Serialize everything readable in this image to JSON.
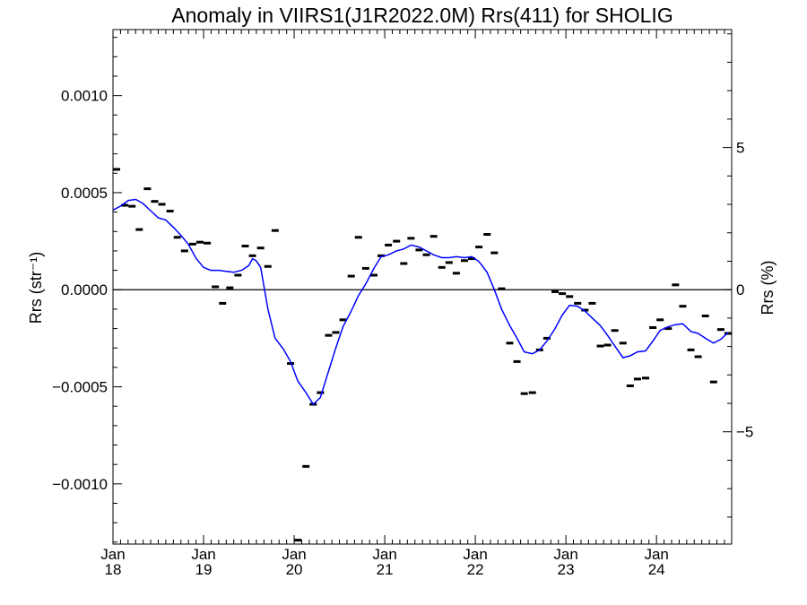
{
  "chart_data": {
    "type": "line",
    "title": "Anomaly in VIIRS1(J1R2022.0M) Rrs(411) for SHOLIG",
    "ylabel_left": "Rrs (str⁻¹)",
    "ylabel_right": "Rrs (%)",
    "xlabel": "",
    "x_ticks": [
      {
        "month": "Jan",
        "year": "18"
      },
      {
        "month": "Jan",
        "year": "19"
      },
      {
        "month": "Jan",
        "year": "20"
      },
      {
        "month": "Jan",
        "year": "21"
      },
      {
        "month": "Jan",
        "year": "22"
      },
      {
        "month": "Jan",
        "year": "23"
      },
      {
        "month": "Jan",
        "year": "24"
      }
    ],
    "xlim": [
      2018.0,
      2024.83
    ],
    "ylim_left": [
      -0.00131,
      0.00134
    ],
    "ylim_right": [
      -8.95,
      9.15
    ],
    "y_ticks_left": [
      {
        "value": 0.001,
        "label": "0.0010"
      },
      {
        "value": 0.0005,
        "label": "0.0005"
      },
      {
        "value": 0.0,
        "label": "0.0000"
      },
      {
        "value": -0.0005,
        "label": "−0.0005"
      },
      {
        "value": -0.001,
        "label": "−0.0010"
      }
    ],
    "y_ticks_right": [
      {
        "value": 5,
        "label": "5"
      },
      {
        "value": 0,
        "label": "0"
      },
      {
        "value": -5,
        "label": "−5"
      }
    ],
    "zero_line": true,
    "grid": false,
    "series": [
      {
        "style": "markers",
        "color": "#000000",
        "points": [
          [
            2018.04,
            0.00062
          ],
          [
            2018.13,
            0.000435
          ],
          [
            2018.21,
            0.00043
          ],
          [
            2018.29,
            0.00031
          ],
          [
            2018.38,
            0.00052
          ],
          [
            2018.46,
            0.000455
          ],
          [
            2018.54,
            0.00044
          ],
          [
            2018.63,
            0.000405
          ],
          [
            2018.71,
            0.00027
          ],
          [
            2018.79,
            0.0002
          ],
          [
            2018.88,
            0.000235
          ],
          [
            2018.96,
            0.000245
          ],
          [
            2019.04,
            0.00024
          ],
          [
            2019.13,
            1.5e-05
          ],
          [
            2019.21,
            -7e-05
          ],
          [
            2019.29,
            1e-05
          ],
          [
            2019.38,
            7.5e-05
          ],
          [
            2019.46,
            0.000225
          ],
          [
            2019.54,
            0.000175
          ],
          [
            2019.63,
            0.000215
          ],
          [
            2019.71,
            0.00012
          ],
          [
            2019.79,
            0.000305
          ],
          [
            2019.96,
            -0.00038
          ],
          [
            2020.04,
            -0.00129
          ],
          [
            2020.13,
            -0.00091
          ],
          [
            2020.21,
            -0.00059
          ],
          [
            2020.29,
            -0.00053
          ],
          [
            2020.38,
            -0.000235
          ],
          [
            2020.46,
            -0.00022
          ],
          [
            2020.54,
            -0.000155
          ],
          [
            2020.63,
            7e-05
          ],
          [
            2020.71,
            0.00027
          ],
          [
            2020.79,
            0.00011
          ],
          [
            2020.88,
            7.5e-05
          ],
          [
            2020.96,
            0.000175
          ],
          [
            2021.04,
            0.00023
          ],
          [
            2021.13,
            0.00025
          ],
          [
            2021.21,
            0.000135
          ],
          [
            2021.29,
            0.000265
          ],
          [
            2021.38,
            0.000205
          ],
          [
            2021.46,
            0.00018
          ],
          [
            2021.54,
            0.000275
          ],
          [
            2021.63,
            0.000115
          ],
          [
            2021.71,
            0.00014
          ],
          [
            2021.79,
            8.5e-05
          ],
          [
            2021.88,
            0.00015
          ],
          [
            2021.96,
            0.00016
          ],
          [
            2022.04,
            0.00022
          ],
          [
            2022.13,
            0.000285
          ],
          [
            2022.21,
            0.00019
          ],
          [
            2022.29,
            5e-06
          ],
          [
            2022.38,
            -0.000275
          ],
          [
            2022.46,
            -0.00037
          ],
          [
            2022.54,
            -0.000535
          ],
          [
            2022.63,
            -0.00053
          ],
          [
            2022.71,
            -0.00031
          ],
          [
            2022.79,
            -0.00025
          ],
          [
            2022.88,
            -1e-05
          ],
          [
            2022.96,
            -2e-05
          ],
          [
            2023.04,
            -3.5e-05
          ],
          [
            2023.13,
            -7e-05
          ],
          [
            2023.21,
            -0.000105
          ],
          [
            2023.29,
            -7e-05
          ],
          [
            2023.38,
            -0.00029
          ],
          [
            2023.46,
            -0.000285
          ],
          [
            2023.54,
            -0.00021
          ],
          [
            2023.63,
            -0.000275
          ],
          [
            2023.71,
            -0.000495
          ],
          [
            2023.79,
            -0.00046
          ],
          [
            2023.88,
            -0.000455
          ],
          [
            2023.96,
            -0.000195
          ],
          [
            2024.04,
            -0.000155
          ],
          [
            2024.13,
            -0.0002
          ],
          [
            2024.21,
            2.5e-05
          ],
          [
            2024.29,
            -8.5e-05
          ],
          [
            2024.38,
            -0.00031
          ],
          [
            2024.46,
            -0.000345
          ],
          [
            2024.54,
            -0.000135
          ],
          [
            2024.63,
            -0.000475
          ],
          [
            2024.71,
            -0.000205
          ],
          [
            2024.79,
            -0.000225
          ]
        ]
      },
      {
        "style": "line",
        "color": "#0000ff",
        "points": [
          [
            2018.0,
            0.00041
          ],
          [
            2018.08,
            0.00043
          ],
          [
            2018.17,
            0.00046
          ],
          [
            2018.25,
            0.000465
          ],
          [
            2018.33,
            0.000445
          ],
          [
            2018.42,
            0.000405
          ],
          [
            2018.5,
            0.00037
          ],
          [
            2018.58,
            0.00036
          ],
          [
            2018.67,
            0.00032
          ],
          [
            2018.75,
            0.00028
          ],
          [
            2018.83,
            0.000235
          ],
          [
            2018.92,
            0.00016
          ],
          [
            2019.0,
            0.000115
          ],
          [
            2019.08,
            0.0001
          ],
          [
            2019.17,
            0.0001
          ],
          [
            2019.25,
            9.5e-05
          ],
          [
            2019.33,
            9e-05
          ],
          [
            2019.42,
            0.0001
          ],
          [
            2019.5,
            0.000125
          ],
          [
            2019.54,
            0.00016
          ],
          [
            2019.58,
            0.00015
          ],
          [
            2019.63,
            0.000115
          ],
          [
            2019.71,
            -0.0001
          ],
          [
            2019.79,
            -0.00025
          ],
          [
            2019.88,
            -0.000305
          ],
          [
            2019.96,
            -0.00037
          ],
          [
            2020.04,
            -0.00047
          ],
          [
            2020.13,
            -0.00053
          ],
          [
            2020.21,
            -0.00059
          ],
          [
            2020.29,
            -0.000555
          ],
          [
            2020.38,
            -0.00042
          ],
          [
            2020.46,
            -0.0003
          ],
          [
            2020.54,
            -0.00019
          ],
          [
            2020.63,
            -0.00011
          ],
          [
            2020.71,
            -3e-05
          ],
          [
            2020.79,
            3e-05
          ],
          [
            2020.88,
            0.00011
          ],
          [
            2020.96,
            0.00017
          ],
          [
            2021.04,
            0.00018
          ],
          [
            2021.13,
            0.0002
          ],
          [
            2021.21,
            0.00021
          ],
          [
            2021.29,
            0.00023
          ],
          [
            2021.38,
            0.00022
          ],
          [
            2021.46,
            0.0002
          ],
          [
            2021.54,
            0.00018
          ],
          [
            2021.63,
            0.000165
          ],
          [
            2021.71,
            0.000165
          ],
          [
            2021.79,
            0.00017
          ],
          [
            2021.88,
            0.000165
          ],
          [
            2021.96,
            0.00017
          ],
          [
            2022.04,
            0.000145
          ],
          [
            2022.13,
            9e-05
          ],
          [
            2022.21,
            0.0
          ],
          [
            2022.29,
            -0.0001
          ],
          [
            2022.38,
            -0.000185
          ],
          [
            2022.46,
            -0.00025
          ],
          [
            2022.54,
            -0.00032
          ],
          [
            2022.63,
            -0.00033
          ],
          [
            2022.71,
            -0.00031
          ],
          [
            2022.79,
            -0.000265
          ],
          [
            2022.88,
            -0.0002
          ],
          [
            2022.96,
            -0.00013
          ],
          [
            2023.04,
            -8e-05
          ],
          [
            2023.13,
            -8.5e-05
          ],
          [
            2023.21,
            -0.00011
          ],
          [
            2023.29,
            -0.000145
          ],
          [
            2023.38,
            -0.000185
          ],
          [
            2023.46,
            -0.000235
          ],
          [
            2023.54,
            -0.00029
          ],
          [
            2023.63,
            -0.00035
          ],
          [
            2023.71,
            -0.00034
          ],
          [
            2023.79,
            -0.00032
          ],
          [
            2023.88,
            -0.000315
          ],
          [
            2023.96,
            -0.000265
          ],
          [
            2024.04,
            -0.00021
          ],
          [
            2024.13,
            -0.00019
          ],
          [
            2024.21,
            -0.00018
          ],
          [
            2024.29,
            -0.000175
          ],
          [
            2024.38,
            -0.000215
          ],
          [
            2024.46,
            -0.000225
          ],
          [
            2024.54,
            -0.00025
          ],
          [
            2024.63,
            -0.000275
          ],
          [
            2024.71,
            -0.000255
          ],
          [
            2024.79,
            -0.00022
          ]
        ]
      }
    ]
  }
}
